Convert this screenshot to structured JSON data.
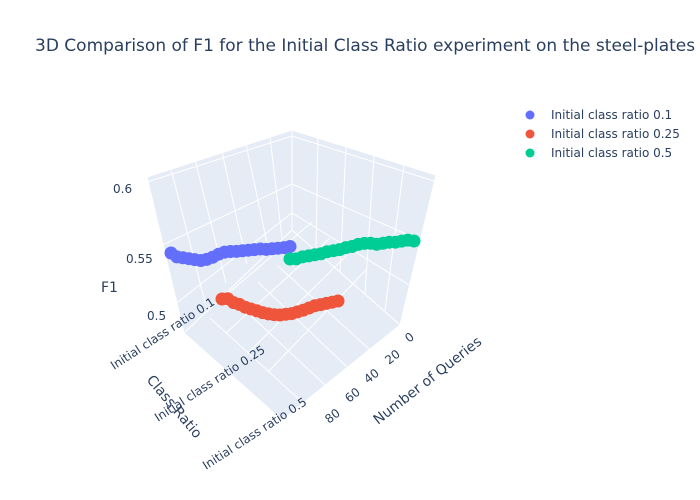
{
  "chart_data": {
    "type": "scatter",
    "title": "3D Comparison of F1 for the Initial Class Ratio experiment on the steel-plates",
    "axes": {
      "x": {
        "title": "Number of Queries",
        "ticks": [
          0,
          20,
          40,
          60,
          80
        ]
      },
      "y": {
        "title": "Class Ratio",
        "ticks": [
          "Initial class ratio 0.1",
          "Initial class ratio 0.25",
          "Initial class ratio 0.5"
        ]
      },
      "z": {
        "title": "F1",
        "ticks": [
          0.5,
          0.55,
          0.6
        ]
      }
    },
    "legend": {
      "placement": "top-right"
    },
    "series": [
      {
        "name": "Initial class ratio 0.1",
        "color": "#636efa",
        "queries": [
          0,
          5,
          10,
          15,
          20,
          25,
          30,
          35,
          40,
          45,
          50,
          55,
          60,
          65,
          70,
          75,
          80,
          85,
          90,
          95,
          100
        ],
        "f1": [
          0.5475,
          0.5465,
          0.546,
          0.5455,
          0.545,
          0.5455,
          0.545,
          0.5445,
          0.544,
          0.5435,
          0.5435,
          0.543,
          0.541,
          0.538,
          0.536,
          0.535,
          0.536,
          0.537,
          0.538,
          0.539,
          0.543
        ]
      },
      {
        "name": "Initial class ratio 0.25",
        "color": "#ef553b",
        "queries": [
          0,
          5,
          10,
          15,
          20,
          25,
          30,
          35,
          40,
          45,
          50,
          55,
          60,
          65,
          70,
          75,
          80,
          85,
          90,
          95,
          100
        ],
        "f1": [
          0.525,
          0.524,
          0.523,
          0.522,
          0.521,
          0.519,
          0.517,
          0.5155,
          0.514,
          0.5135,
          0.513,
          0.5135,
          0.5145,
          0.516,
          0.518,
          0.52,
          0.522,
          0.525,
          0.527,
          0.531,
          0.531
        ]
      },
      {
        "name": "Initial class ratio 0.5",
        "color": "#00cc96",
        "queries": [
          0,
          5,
          10,
          15,
          20,
          25,
          30,
          35,
          40,
          45,
          50,
          55,
          60,
          65,
          70,
          75,
          80,
          85,
          90,
          95,
          100
        ],
        "f1": [
          0.536,
          0.539,
          0.54,
          0.541,
          0.543,
          0.544,
          0.545,
          0.548,
          0.55,
          0.551,
          0.551,
          0.552,
          0.552,
          0.553,
          0.554,
          0.554,
          0.555,
          0.556,
          0.557,
          0.557,
          0.559
        ]
      }
    ]
  }
}
